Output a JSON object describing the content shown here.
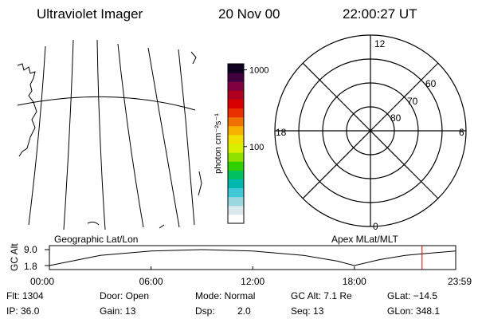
{
  "header": {
    "instrument": "Ultraviolet Imager",
    "date": "20 Nov 00",
    "time": "22:00:27 UT"
  },
  "colorbar": {
    "unit_label": "photon cm⁻²s⁻¹",
    "ticks": [
      {
        "label": "1000",
        "value": 1000
      },
      {
        "label": "100",
        "value": 100
      }
    ],
    "scale": "log",
    "range": [
      10,
      1200
    ],
    "colors": [
      "#ffffff",
      "#d8e8ec",
      "#9ad8e0",
      "#40c8d8",
      "#00b8b0",
      "#00c060",
      "#30d000",
      "#90e000",
      "#d8f000",
      "#f0e000",
      "#f8b000",
      "#f07000",
      "#e83000",
      "#d80000",
      "#b00020",
      "#800040",
      "#400040",
      "#100020"
    ]
  },
  "polar": {
    "mlt_labels": {
      "top": "12",
      "left": "18",
      "right": "6",
      "bottom": "0"
    },
    "lat_labels": [
      "60",
      "70",
      "80"
    ]
  },
  "map_panel": {
    "label": "Geographic Lat/Lon"
  },
  "polar_panel": {
    "label": "Apex MLat/MLT"
  },
  "timeline": {
    "ylabel": "GC Alt",
    "ytick_top": "9.0",
    "ytick_bottom": "1.8",
    "xticks": [
      "00:00",
      "06:00",
      "12:00",
      "18:00",
      "23:59"
    ],
    "current_marker_hours": 22.0,
    "altitude_curve": [
      {
        "t": 0.0,
        "alt": 1.8
      },
      {
        "t": 3.0,
        "alt": 6.4
      },
      {
        "t": 6.0,
        "alt": 8.4
      },
      {
        "t": 9.0,
        "alt": 9.0
      },
      {
        "t": 12.0,
        "alt": 8.4
      },
      {
        "t": 15.0,
        "alt": 6.4
      },
      {
        "t": 17.0,
        "alt": 3.8
      },
      {
        "t": 18.0,
        "alt": 1.8
      },
      {
        "t": 19.5,
        "alt": 4.5
      },
      {
        "t": 21.0,
        "alt": 6.4
      },
      {
        "t": 22.0,
        "alt": 7.1
      },
      {
        "t": 23.98,
        "alt": 8.4
      }
    ]
  },
  "info": {
    "flt": "Flt: 1304",
    "ip": "IP: 36.0",
    "door": "Door: Open",
    "gain": "Gain: 13",
    "mode": "Mode: Normal",
    "dsp_label": "Dsp:",
    "dsp_value": "2.0",
    "gc_alt": "GC Alt: 7.1 Re",
    "seq": "Seq: 13",
    "glat": "GLat: −14.5",
    "glon": "GLon: 348.1"
  }
}
